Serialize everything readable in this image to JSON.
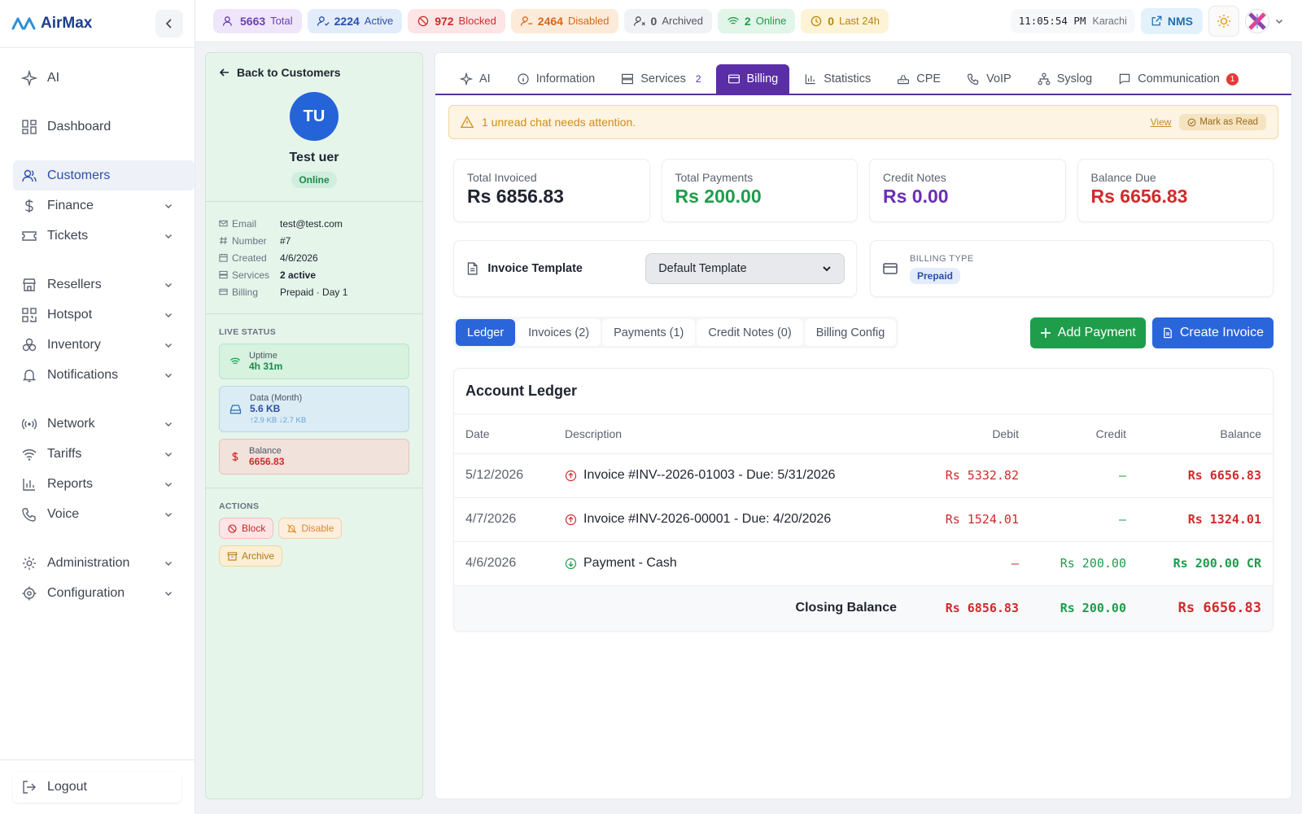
{
  "app": {
    "name": "AirMax"
  },
  "sidebar": {
    "items": [
      {
        "label": "AI",
        "icon": "sparkle-icon"
      },
      {
        "label": "Dashboard",
        "icon": "grid-icon"
      },
      {
        "label": "Customers",
        "icon": "users-icon",
        "active": true
      },
      {
        "label": "Finance",
        "icon": "dollar-icon"
      },
      {
        "label": "Tickets",
        "icon": "ticket-icon"
      },
      {
        "label": "Resellers",
        "icon": "store-icon"
      },
      {
        "label": "Hotspot",
        "icon": "qr-icon"
      },
      {
        "label": "Inventory",
        "icon": "boxes-icon"
      },
      {
        "label": "Notifications",
        "icon": "bell-icon"
      },
      {
        "label": "Network",
        "icon": "broadcast-icon"
      },
      {
        "label": "Tariffs",
        "icon": "wifi-icon"
      },
      {
        "label": "Reports",
        "icon": "bar-chart-icon"
      },
      {
        "label": "Voice",
        "icon": "phone-icon"
      },
      {
        "label": "Administration",
        "icon": "gear-icon"
      },
      {
        "label": "Configuration",
        "icon": "cog-icon"
      }
    ],
    "logout": "Logout"
  },
  "topbar": {
    "stats": [
      {
        "count": "5663",
        "label": "Total",
        "bg": "#efe6fb",
        "color": "#6b3fb5"
      },
      {
        "count": "2224",
        "label": "Active",
        "bg": "#e2ecfb",
        "color": "#2b4fa8"
      },
      {
        "count": "972",
        "label": "Blocked",
        "bg": "#fde5e5",
        "color": "#d12b2b"
      },
      {
        "count": "2464",
        "label": "Disabled",
        "bg": "#fdebd9",
        "color": "#d9661b"
      },
      {
        "count": "0",
        "label": "Archived",
        "bg": "#f1f2f5",
        "color": "#4b5563"
      },
      {
        "count": "2",
        "label": "Online",
        "bg": "#e1f5e8",
        "color": "#1f9d4b"
      },
      {
        "count": "0",
        "label": "Last 24h",
        "bg": "#fdf3d6",
        "color": "#b8860b"
      }
    ],
    "time": "11:05:54 PM",
    "timezone": "Karachi",
    "nms": "NMS"
  },
  "customer": {
    "back": "Back to Customers",
    "initials": "TU",
    "name": "Test uer",
    "status": "Online",
    "details": [
      {
        "key": "Email",
        "value": "test@test.com",
        "icon": "mail-icon"
      },
      {
        "key": "Number",
        "value": "#7",
        "icon": "hash-icon"
      },
      {
        "key": "Created",
        "value": "4/6/2026",
        "icon": "calendar-icon"
      },
      {
        "key": "Services",
        "value": "2 active",
        "icon": "server-icon"
      },
      {
        "key": "Billing",
        "value": "Prepaid · Day 1",
        "icon": "card-icon"
      }
    ],
    "live_status_label": "LIVE STATUS",
    "uptime": {
      "label": "Uptime",
      "value": "4h 31m"
    },
    "data": {
      "label": "Data (Month)",
      "value": "5.6 KB",
      "sub": "↑2.9 KB ↓2.7 KB"
    },
    "balance": {
      "label": "Balance",
      "value": "6656.83"
    },
    "actions_label": "ACTIONS",
    "actions": {
      "block": "Block",
      "disable": "Disable",
      "archive": "Archive"
    }
  },
  "tabs": [
    {
      "label": "AI",
      "icon": "sparkle-icon"
    },
    {
      "label": "Information",
      "icon": "info-icon"
    },
    {
      "label": "Services",
      "icon": "server-icon",
      "count": "2"
    },
    {
      "label": "Billing",
      "icon": "card-icon",
      "active": true
    },
    {
      "label": "Statistics",
      "icon": "bar-chart-icon"
    },
    {
      "label": "CPE",
      "icon": "router-icon"
    },
    {
      "label": "VoIP",
      "icon": "phone-icon"
    },
    {
      "label": "Syslog",
      "icon": "network-icon"
    },
    {
      "label": "Communication",
      "icon": "chat-icon",
      "badge": "1"
    }
  ],
  "alert": {
    "text": "1 unread chat needs attention.",
    "view": "View",
    "mark": "Mark as Read"
  },
  "summary": [
    {
      "label": "Total Invoiced",
      "amount": "Rs 6856.83",
      "color": "#1f2430"
    },
    {
      "label": "Total Payments",
      "amount": "Rs 200.00",
      "color": "#1f9d4b"
    },
    {
      "label": "Credit Notes",
      "amount": "Rs 0.00",
      "color": "#6b2fb5"
    },
    {
      "label": "Balance Due",
      "amount": "Rs 6656.83",
      "color": "#d12b2b"
    }
  ],
  "template": {
    "label": "Invoice Template",
    "selected": "Default Template"
  },
  "billing_type": {
    "label": "BILLING TYPE",
    "value": "Prepaid"
  },
  "subtabs": [
    "Ledger",
    "Invoices (2)",
    "Payments (1)",
    "Credit Notes (0)",
    "Billing Config"
  ],
  "buttons": {
    "add_payment": "Add Payment",
    "create_invoice": "Create Invoice"
  },
  "ledger": {
    "title": "Account Ledger",
    "columns": [
      "Date",
      "Description",
      "Debit",
      "Credit",
      "Balance"
    ],
    "rows": [
      {
        "date": "5/12/2026",
        "type": "invoice",
        "description": "Invoice #INV--2026-01003 - Due: 5/31/2026",
        "debit": "Rs 5332.82",
        "credit": "–",
        "balance": "Rs 6656.83"
      },
      {
        "date": "4/7/2026",
        "type": "invoice",
        "description": "Invoice #INV-2026-00001 - Due: 4/20/2026",
        "debit": "Rs 1524.01",
        "credit": "–",
        "balance": "Rs 1324.01"
      },
      {
        "date": "4/6/2026",
        "type": "payment",
        "description": "Payment - Cash",
        "debit": "–",
        "credit": "Rs 200.00",
        "balance": "Rs 200.00 CR"
      }
    ],
    "closing": {
      "label": "Closing Balance",
      "debit": "Rs 6856.83",
      "credit": "Rs 200.00",
      "balance": "Rs 6656.83"
    }
  }
}
